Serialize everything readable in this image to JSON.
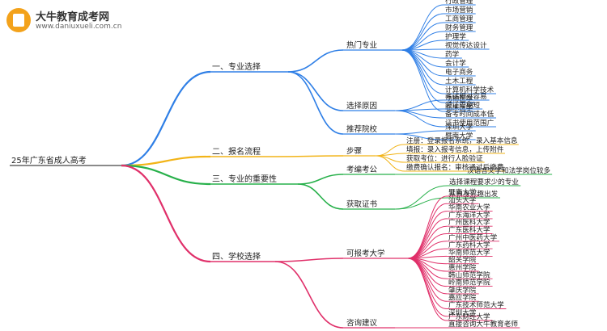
{
  "header": {
    "site_name": "大牛教育成考网",
    "site_url": "www.daniuxueli.com.cn"
  },
  "mindmap": {
    "root": "25年广东省成人高考",
    "branches": [
      {
        "label": "一、专业选择",
        "color": "#2f7fe6",
        "groups": [
          {
            "label": "热门专业",
            "leaves": [
              "行政管理",
              "市场营销",
              "工商管理",
              "财务管理",
              "护理学",
              "视觉传达设计",
              "药学",
              "会计学",
              "电子商务",
              "土木工程",
              "计算机科学技术",
              "动物医学",
              "临床医学"
            ]
          },
          {
            "label": "选择原因",
            "leaves": [
              "考试相对容易",
              "领证周期短",
              "备考时间成本低",
              "证书使用范围广"
            ]
          },
          {
            "label": "推荐院校",
            "leaves": [
              "深圳大学",
              "暨南大学"
            ]
          }
        ]
      },
      {
        "label": "二、报名流程",
        "color": "#f2b418",
        "groups": [
          {
            "label": "步骤",
            "leaves": [
              "注册：登录报名系统，录入基本信息",
              "填报：录入报考信息，上传附件",
              "获取考位：进行人脸验证",
              "缴费确认报名：审核通过后缴费"
            ]
          }
        ]
      },
      {
        "label": "三、专业的重要性",
        "color": "#27b04a",
        "groups": [
          {
            "label": "考编考公",
            "leaves": [
              "汉语言文学和法学岗位较多"
            ]
          },
          {
            "label": "获取证书",
            "leaves": [
              "选择课程要求少的专业",
              "从自身兴趣出发"
            ]
          }
        ]
      },
      {
        "label": "四、学校选择",
        "color": "#e0306a",
        "groups": [
          {
            "label": "可报考大学",
            "leaves": [
              "暨南大学",
              "汕头大学",
              "华南农业大学",
              "广东海洋大学",
              "广州医科大学",
              "广东医科大学",
              "广州中医药大学",
              "广东药科大学",
              "华南师范大学",
              "韶关学院",
              "惠州学院",
              "韩山师范学院",
              "岭南师范学院",
              "肇庆学院",
              "嘉应学院",
              "广东技术师范大学",
              "深圳大学",
              "广东财经大学"
            ]
          },
          {
            "label": "咨询建议",
            "leaves": [
              "直接咨询大牛教育老师"
            ]
          }
        ]
      }
    ]
  }
}
